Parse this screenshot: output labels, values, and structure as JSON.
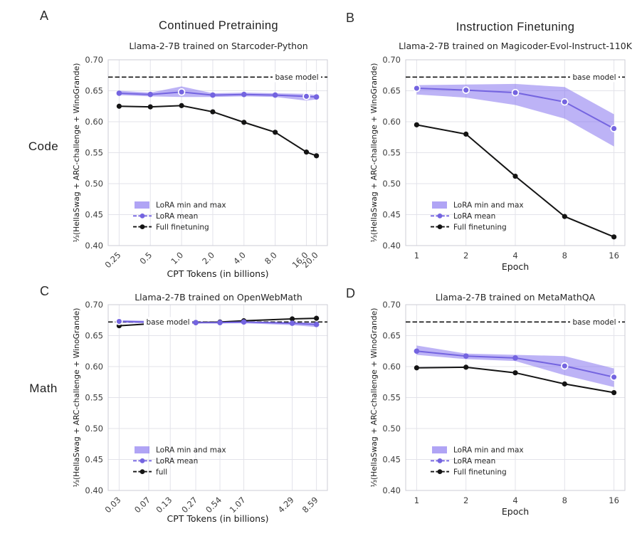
{
  "figure": {
    "panel_letters": [
      "A",
      "B",
      "C",
      "D"
    ],
    "column_headers": [
      "Continued Pretraining",
      "Instruction Finetuning"
    ],
    "row_labels": [
      "Code",
      "Math"
    ],
    "ylabel": "⅓(HellaSwag + ARC-challenge + WinoGrande)",
    "colors": {
      "lora_line": "#7464E0",
      "lora_band": "#7B68EE",
      "band_opacity": 0.5,
      "full_line": "#141414",
      "base_line": "#141414",
      "grid": "#e3e3ea",
      "spine": "#cccdd6",
      "tick_text": "#3d3d3d",
      "background": "#ffffff"
    }
  },
  "chart_data": [
    {
      "panel": "A",
      "row": "Code",
      "type": "line",
      "title": "Llama-2-7B trained on Starcoder-Python",
      "xlabel": "CPT Tokens (in billions)",
      "xscale": "log",
      "xtick_rotation": 45,
      "x": [
        0.25,
        0.5,
        1.0,
        2.0,
        4.0,
        8.0,
        16.0,
        20.0
      ],
      "xtick_labels": [
        "0.25",
        "0.5",
        "1.0",
        "2.0",
        "4.0",
        "8.0",
        "16.0",
        "20.0"
      ],
      "ylim": [
        0.4,
        0.7
      ],
      "yticks": [
        0.4,
        0.45,
        0.5,
        0.55,
        0.6,
        0.65,
        0.7
      ],
      "base_model": {
        "value": 0.672,
        "label": "base model",
        "label_side": "right"
      },
      "band": {
        "name": "LoRA min and max",
        "min": [
          0.643,
          0.641,
          0.64,
          0.64,
          0.641,
          0.64,
          0.634,
          0.636
        ],
        "max": [
          0.65,
          0.647,
          0.657,
          0.646,
          0.647,
          0.646,
          0.645,
          0.643
        ]
      },
      "lora": {
        "name": "LoRA mean",
        "values": [
          0.646,
          0.644,
          0.648,
          0.643,
          0.644,
          0.643,
          0.641,
          0.64
        ],
        "ring_marker_indices": [
          2,
          6
        ]
      },
      "full": {
        "name": "Full finetuning",
        "values": [
          0.625,
          0.624,
          0.626,
          0.616,
          0.599,
          0.583,
          0.551,
          0.545
        ]
      },
      "legend": [
        "LoRA min and max",
        "LoRA mean",
        "Full finetuning"
      ]
    },
    {
      "panel": "B",
      "row": "Code",
      "type": "line",
      "title": "Llama-2-7B trained on Magicoder-Evol-Instruct-110K",
      "xlabel": "Epoch",
      "xscale": "log",
      "xtick_rotation": 0,
      "x": [
        1,
        2,
        4,
        8,
        16
      ],
      "xtick_labels": [
        "1",
        "2",
        "4",
        "8",
        "16"
      ],
      "ylim": [
        0.4,
        0.7
      ],
      "yticks": [
        0.4,
        0.45,
        0.5,
        0.55,
        0.6,
        0.65,
        0.7
      ],
      "base_model": {
        "value": 0.672,
        "label": "base model",
        "label_side": "right"
      },
      "band": {
        "name": "LoRA min and max",
        "min": [
          0.644,
          0.639,
          0.627,
          0.605,
          0.56
        ],
        "max": [
          0.659,
          0.66,
          0.661,
          0.656,
          0.612
        ]
      },
      "lora": {
        "name": "LoRA mean",
        "values": [
          0.654,
          0.651,
          0.647,
          0.632,
          0.589
        ],
        "ring_marker_indices": [
          0,
          1,
          2,
          3,
          4
        ]
      },
      "full": {
        "name": "Full finetuning",
        "values": [
          0.595,
          0.58,
          0.512,
          0.447,
          0.414
        ]
      },
      "legend": [
        "LoRA min and max",
        "LoRA mean",
        "Full finetuning"
      ]
    },
    {
      "panel": "C",
      "row": "Math",
      "type": "line",
      "title": "Llama-2-7B trained on OpenWebMath",
      "xlabel": "CPT Tokens (in billions)",
      "xscale": "log",
      "xtick_rotation": 45,
      "x": [
        0.03,
        0.07,
        0.13,
        0.27,
        0.54,
        1.07,
        4.29,
        8.59
      ],
      "xtick_labels": [
        "0.03",
        "0.07",
        "0.13",
        "0.27",
        "0.54",
        "1.07",
        "4.29",
        "8.59"
      ],
      "ylim": [
        0.4,
        0.7
      ],
      "yticks": [
        0.4,
        0.45,
        0.5,
        0.55,
        0.6,
        0.65,
        0.7
      ],
      "base_model": {
        "value": 0.672,
        "label": "base model",
        "label_side": "left"
      },
      "band": {
        "name": "LoRA min and max",
        "min": [
          0.671,
          0.67,
          0.67,
          0.67,
          0.67,
          0.67,
          0.667,
          0.664
        ],
        "max": [
          0.675,
          0.674,
          0.673,
          0.673,
          0.673,
          0.673,
          0.672,
          0.671
        ]
      },
      "lora": {
        "name": "LoRA mean",
        "values": [
          0.673,
          0.672,
          0.672,
          0.671,
          0.671,
          0.672,
          0.67,
          0.668
        ],
        "ring_marker_indices": [
          0
        ]
      },
      "full": {
        "name": "full",
        "values": [
          0.666,
          0.669,
          0.67,
          0.671,
          0.672,
          0.674,
          0.677,
          0.678
        ]
      },
      "legend": [
        "LoRA min and max",
        "LoRA mean",
        "full"
      ]
    },
    {
      "panel": "D",
      "row": "Math",
      "type": "line",
      "title": "Llama-2-7B trained on MetaMathQA",
      "xlabel": "Epoch",
      "xscale": "log",
      "xtick_rotation": 0,
      "x": [
        1,
        2,
        4,
        8,
        16
      ],
      "xtick_labels": [
        "1",
        "2",
        "4",
        "8",
        "16"
      ],
      "ylim": [
        0.4,
        0.7
      ],
      "yticks": [
        0.4,
        0.45,
        0.5,
        0.55,
        0.6,
        0.65,
        0.7
      ],
      "base_model": {
        "value": 0.672,
        "label": "base model",
        "label_side": "right"
      },
      "band": {
        "name": "LoRA min and max",
        "min": [
          0.619,
          0.612,
          0.609,
          0.586,
          0.567
        ],
        "max": [
          0.634,
          0.621,
          0.619,
          0.617,
          0.597
        ]
      },
      "lora": {
        "name": "LoRA mean",
        "values": [
          0.625,
          0.617,
          0.614,
          0.601,
          0.583
        ],
        "ring_marker_indices": [
          3,
          4
        ]
      },
      "full": {
        "name": "Full finetuning",
        "values": [
          0.598,
          0.599,
          0.59,
          0.572,
          0.558
        ]
      },
      "legend": [
        "LoRA min and max",
        "LoRA mean",
        "Full finetuning"
      ]
    }
  ]
}
